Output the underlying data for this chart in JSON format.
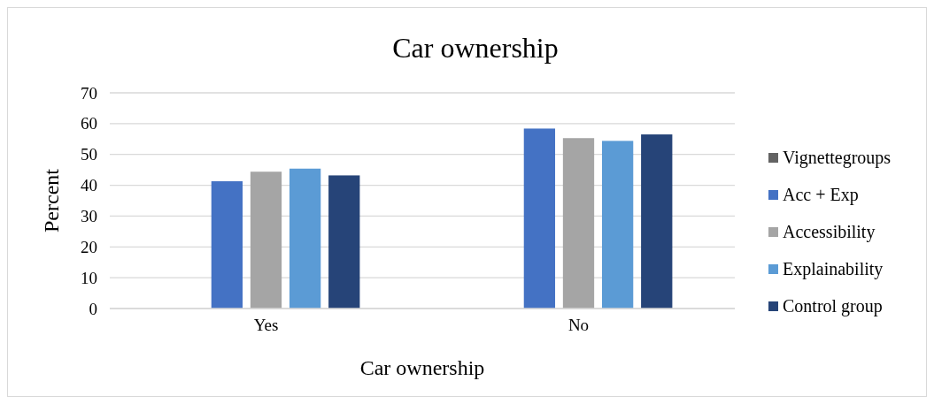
{
  "chart_data": {
    "type": "bar",
    "title": "Car ownership",
    "xlabel": "Car ownership",
    "ylabel": "Percent",
    "categories": [
      "Yes",
      "No"
    ],
    "series": [
      {
        "name": "Vignettegroups",
        "color": "#636363",
        "values": [
          null,
          null
        ]
      },
      {
        "name": "Acc + Exp",
        "color": "#4472c4",
        "values": [
          41.3,
          58.4
        ]
      },
      {
        "name": "Accessibility",
        "color": "#a5a5a5",
        "values": [
          44.4,
          55.3
        ]
      },
      {
        "name": "Explainability",
        "color": "#5b9bd5",
        "values": [
          45.4,
          54.4
        ]
      },
      {
        "name": "Control group",
        "color": "#264478",
        "values": [
          43.2,
          56.5
        ]
      }
    ],
    "ylim": [
      0,
      70
    ],
    "yticks": [
      0,
      10,
      20,
      30,
      40,
      50,
      60,
      70
    ],
    "grid": "y",
    "legend": "right"
  }
}
